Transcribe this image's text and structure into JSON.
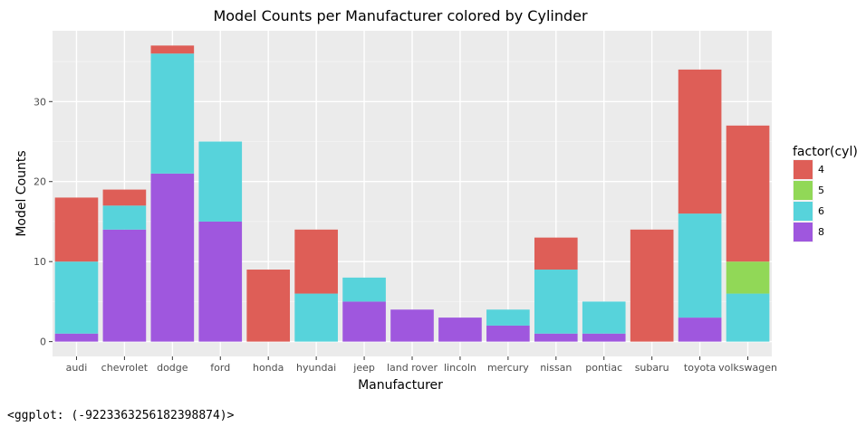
{
  "output": {
    "repr": "<ggplot: (-9223363256182398874)>"
  },
  "colors": {
    "panel_bg": "#ebebeb",
    "grid_major": "#ffffff",
    "grid_minor": "#f5f5f5",
    "tick_mark": "#333333"
  },
  "chart_data": {
    "type": "bar",
    "stacked": true,
    "title": "Model Counts per Manufacturer colored by Cylinder",
    "xlabel": "Manufacturer",
    "ylabel": "Model Counts",
    "ylim": [
      -1.85,
      38.85
    ],
    "yticks": [
      0,
      10,
      20,
      30
    ],
    "grid": true,
    "legend_position": "right",
    "legend_title": "factor(cyl)",
    "categories": [
      "audi",
      "chevrolet",
      "dodge",
      "ford",
      "honda",
      "hyundai",
      "jeep",
      "land rover",
      "lincoln",
      "mercury",
      "nissan",
      "pontiac",
      "subaru",
      "toyota",
      "volkswagen"
    ],
    "series": [
      {
        "name": "4",
        "color": "#DE5E57",
        "values": [
          8,
          2,
          1,
          0,
          9,
          8,
          0,
          0,
          0,
          0,
          4,
          0,
          14,
          18,
          17
        ]
      },
      {
        "name": "5",
        "color": "#91D857",
        "values": [
          0,
          0,
          0,
          0,
          0,
          0,
          0,
          0,
          0,
          0,
          0,
          0,
          0,
          0,
          4
        ]
      },
      {
        "name": "6",
        "color": "#57D3DB",
        "values": [
          9,
          3,
          15,
          10,
          0,
          6,
          3,
          0,
          0,
          2,
          8,
          4,
          0,
          13,
          6
        ]
      },
      {
        "name": "8",
        "color": "#9F57DE",
        "values": [
          1,
          14,
          21,
          15,
          0,
          0,
          5,
          4,
          3,
          2,
          1,
          1,
          0,
          3,
          0
        ]
      }
    ]
  }
}
